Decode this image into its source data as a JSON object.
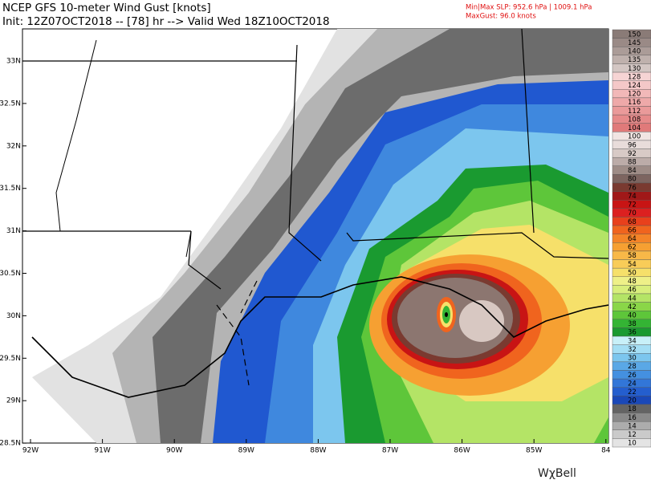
{
  "header": {
    "title": "NCEP GFS 10-meter Wind Gust [knots]",
    "init": "Init: 12Z07OCT2018 -- [78] hr --> Valid Wed 18Z10OCT2018"
  },
  "info": {
    "slp": "Min|Max SLP: 952.6 hPa | 1009.1 hPa",
    "max_gust": "MaxGust: 96.0 knots"
  },
  "legend": {
    "items": [
      {
        "label": "150",
        "color": "#8a7b77"
      },
      {
        "label": "145",
        "color": "#9a8a86"
      },
      {
        "label": "140",
        "color": "#ab9c98"
      },
      {
        "label": "135",
        "color": "#bfb1ad"
      },
      {
        "label": "130",
        "color": "#d3c6c3"
      },
      {
        "label": "128",
        "color": "#f6d4d4"
      },
      {
        "label": "124",
        "color": "#f4c8c8"
      },
      {
        "label": "120",
        "color": "#f2b8b8"
      },
      {
        "label": "116",
        "color": "#eea9a9"
      },
      {
        "label": "112",
        "color": "#ea9a9a"
      },
      {
        "label": "108",
        "color": "#e68a8a"
      },
      {
        "label": "104",
        "color": "#e07a7a"
      },
      {
        "label": "100",
        "color": "#f1e4e2"
      },
      {
        "label": "96",
        "color": "#e8dcda"
      },
      {
        "label": "92",
        "color": "#d8cac6"
      },
      {
        "label": "88",
        "color": "#bcaca8"
      },
      {
        "label": "84",
        "color": "#9e8c86"
      },
      {
        "label": "80",
        "color": "#7d6560"
      },
      {
        "label": "76",
        "color": "#7a3a30"
      },
      {
        "label": "74",
        "color": "#a01818"
      },
      {
        "label": "72",
        "color": "#c81414"
      },
      {
        "label": "70",
        "color": "#dc2020"
      },
      {
        "label": "68",
        "color": "#e8401c"
      },
      {
        "label": "66",
        "color": "#f0641e"
      },
      {
        "label": "64",
        "color": "#f48428"
      },
      {
        "label": "62",
        "color": "#f6a032"
      },
      {
        "label": "58",
        "color": "#f8b848"
      },
      {
        "label": "54",
        "color": "#f8cc58"
      },
      {
        "label": "50",
        "color": "#f6e06a"
      },
      {
        "label": "48",
        "color": "#eef088"
      },
      {
        "label": "46",
        "color": "#d8ee7c"
      },
      {
        "label": "44",
        "color": "#b4e466"
      },
      {
        "label": "42",
        "color": "#8ad648"
      },
      {
        "label": "40",
        "color": "#5ec63a"
      },
      {
        "label": "38",
        "color": "#34b434"
      },
      {
        "label": "36",
        "color": "#1a9a30"
      },
      {
        "label": "34",
        "color": "#c8f0f8"
      },
      {
        "label": "32",
        "color": "#a4def4"
      },
      {
        "label": "30",
        "color": "#7cc6ee"
      },
      {
        "label": "28",
        "color": "#5aa8e6"
      },
      {
        "label": "26",
        "color": "#4490e0"
      },
      {
        "label": "24",
        "color": "#3276d8"
      },
      {
        "label": "22",
        "color": "#245ece"
      },
      {
        "label": "20",
        "color": "#1a48b8"
      },
      {
        "label": "18",
        "color": "#646464"
      },
      {
        "label": "16",
        "color": "#8a8a8a"
      },
      {
        "label": "14",
        "color": "#acacac"
      },
      {
        "label": "12",
        "color": "#cacaca"
      },
      {
        "label": "10",
        "color": "#e4e4e4"
      }
    ]
  },
  "axes": {
    "lat": [
      "33N",
      "32.5N",
      "32N",
      "31.5N",
      "31N",
      "30.5N",
      "30N",
      "29.5N",
      "29N",
      "28.5N"
    ],
    "lon": [
      "92W",
      "91W",
      "90W",
      "89W",
      "88W",
      "87W",
      "86W",
      "85W",
      "84"
    ]
  },
  "logo": "WχBell"
}
